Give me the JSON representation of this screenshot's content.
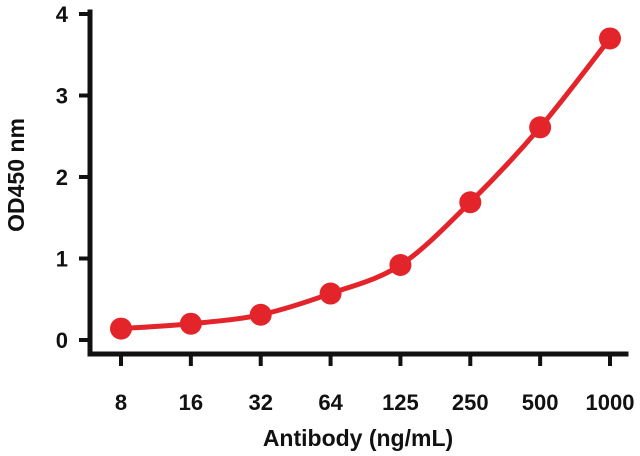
{
  "chart_data": {
    "type": "line",
    "title": "",
    "xlabel": "Antibody (ng/mL)",
    "ylabel": "OD450 nm",
    "x_scale": "log2",
    "x": [
      8,
      16,
      32,
      64,
      125,
      250,
      500,
      1000
    ],
    "x_tick_labels": [
      "8",
      "16",
      "32",
      "64",
      "125",
      "250",
      "500",
      "1000"
    ],
    "y_ticks": [
      "0",
      "1",
      "2",
      "3",
      "4"
    ],
    "ylim": [
      0,
      4
    ],
    "grid": false,
    "legend": "none",
    "series": [
      {
        "values": [
          0.14,
          0.2,
          0.31,
          0.57,
          0.92,
          1.69,
          2.61,
          3.7
        ],
        "color": "#e3242b",
        "marker": "circle"
      }
    ]
  }
}
